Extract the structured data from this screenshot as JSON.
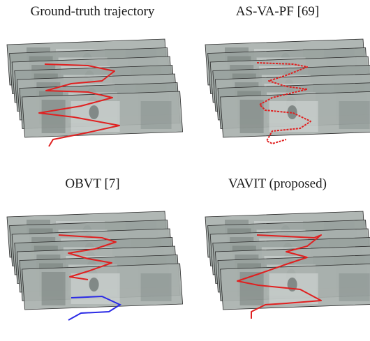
{
  "figure": {
    "panels": [
      {
        "caption": "Ground-truth trajectory",
        "trajectory_color": "#e02020"
      },
      {
        "caption": "AS-VA-PF [69]",
        "trajectory_color": "#e02020"
      },
      {
        "caption": "OBVT [7]",
        "trajectory_color": "#e02020",
        "secondary_trajectory_color": "#2a2ae6"
      },
      {
        "caption": "VAVIT (proposed)",
        "trajectory_color": "#e02020"
      }
    ],
    "frame_count": 7
  }
}
